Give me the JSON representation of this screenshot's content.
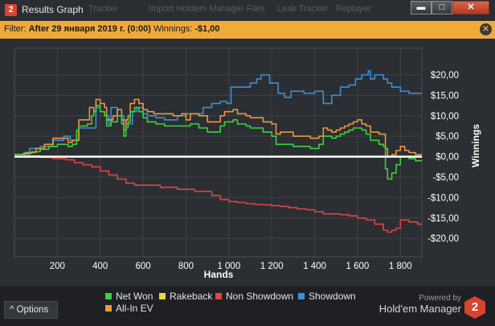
{
  "window": {
    "title": "Results Graph",
    "app_badge": "2",
    "ghost_tabs": [
      "Tracker",
      "Import Holdem Manager Files",
      "Leak Tracker",
      "Replayer"
    ],
    "min_label": "▬",
    "max_label": "□",
    "close_label": "✕"
  },
  "filter": {
    "prefix": "Filter: ",
    "date_text": "After 29 января 2019 г. (0:00)",
    "winnings_label": " Winnings: ",
    "winnings_value": "-$1,00",
    "close_label": "✕"
  },
  "chart_data": {
    "type": "line",
    "xlabel": "Hands",
    "ylabel": "Winnings",
    "x_ticks": [
      200,
      400,
      600,
      800,
      1000,
      1200,
      1400,
      1600,
      1800
    ],
    "x_tick_labels": [
      "200",
      "400",
      "600",
      "800",
      "1 000",
      "1 200",
      "1 400",
      "1 600",
      "1 800"
    ],
    "y_ticks": [
      20,
      15,
      10,
      5,
      0,
      -5,
      -10,
      -15,
      -20
    ],
    "y_tick_labels": [
      "$20,00",
      "$15,00",
      "$10,00",
      "$5,00",
      "$0,00",
      "-$5,00",
      "-$10,00",
      "-$15,00",
      "-$20,00"
    ],
    "xlim": [
      0,
      1900
    ],
    "ylim": [
      -24.5,
      26.5
    ],
    "grid": true,
    "zero_line": true,
    "series": [
      {
        "name": "Showdown",
        "color": "#3b8fd8",
        "x": [
          0,
          70,
          120,
          180,
          230,
          260,
          300,
          340,
          370,
          380,
          400,
          420,
          440,
          450,
          480,
          510,
          520,
          550,
          570,
          600,
          620,
          660,
          700,
          760,
          800,
          880,
          920,
          960,
          990,
          1010,
          1040,
          1100,
          1130,
          1150,
          1190,
          1230,
          1260,
          1290,
          1310,
          1350,
          1400,
          1430,
          1440,
          1480,
          1520,
          1560,
          1590,
          1620,
          1650,
          1660,
          1680,
          1720,
          1740,
          1760,
          1800,
          1840,
          1870,
          1900
        ],
        "y": [
          0.5,
          2,
          2.5,
          4,
          5,
          4,
          7,
          7,
          7,
          12,
          11,
          10,
          8,
          12,
          10,
          9,
          8,
          11,
          12,
          10.5,
          10,
          9.5,
          9,
          10,
          10.5,
          12,
          13,
          13.5,
          13,
          17,
          17,
          18,
          19,
          20,
          18,
          15.5,
          14.5,
          16,
          16,
          15.5,
          16,
          16,
          13,
          15,
          17,
          17.5,
          19,
          20,
          21,
          19,
          20,
          19,
          18,
          17,
          16,
          15.5,
          15.5,
          15.5
        ]
      },
      {
        "name": "All-In EV",
        "color": "#f0963c",
        "x": [
          0,
          50,
          100,
          140,
          180,
          250,
          270,
          300,
          350,
          370,
          380,
          400,
          420,
          430,
          460,
          480,
          500,
          510,
          520,
          530,
          540,
          560,
          580,
          600,
          620,
          650,
          700,
          740,
          780,
          800,
          820,
          860,
          900,
          960,
          980,
          1000,
          1020,
          1040,
          1080,
          1100,
          1120,
          1160,
          1200,
          1220,
          1240,
          1300,
          1340,
          1380,
          1400,
          1420,
          1440,
          1460,
          1480,
          1500,
          1520,
          1540,
          1560,
          1580,
          1600,
          1620,
          1640,
          1660,
          1700,
          1720,
          1730,
          1740,
          1760,
          1780,
          1800,
          1820,
          1840,
          1870,
          1900
        ],
        "y": [
          0.5,
          1,
          2,
          3,
          4.5,
          3.5,
          4,
          9,
          12,
          11,
          14,
          13,
          12,
          9,
          10,
          11.5,
          9,
          6.5,
          9,
          10,
          13,
          14,
          13,
          11.5,
          11,
          10.5,
          10.5,
          10,
          10.5,
          9,
          10.5,
          10,
          8.5,
          10,
          11,
          11,
          11.5,
          10.5,
          10,
          9.5,
          9.5,
          8.5,
          8,
          5.5,
          6,
          5,
          5,
          4.5,
          4.5,
          5,
          7,
          6.5,
          6,
          6.5,
          7,
          7.5,
          8,
          8.5,
          9,
          8,
          7.5,
          6,
          5.5,
          5.5,
          2,
          0,
          0.5,
          1.5,
          2.5,
          1.5,
          1,
          0.5,
          0.5
        ]
      },
      {
        "name": "Net Won",
        "color": "#3cd23c",
        "x": [
          0,
          40,
          80,
          120,
          160,
          200,
          250,
          270,
          290,
          300,
          340,
          360,
          370,
          380,
          400,
          420,
          430,
          450,
          480,
          500,
          510,
          520,
          530,
          540,
          560,
          580,
          600,
          620,
          660,
          700,
          760,
          800,
          820,
          860,
          900,
          960,
          980,
          1000,
          1020,
          1040,
          1080,
          1100,
          1120,
          1160,
          1200,
          1220,
          1240,
          1300,
          1340,
          1380,
          1400,
          1420,
          1440,
          1460,
          1480,
          1500,
          1520,
          1540,
          1560,
          1580,
          1600,
          1620,
          1640,
          1660,
          1700,
          1720,
          1730,
          1740,
          1760,
          1780,
          1800,
          1820,
          1840,
          1870,
          1900
        ],
        "y": [
          0.5,
          0.8,
          1.2,
          1.8,
          2.5,
          3,
          2.5,
          3,
          6.5,
          7.5,
          8,
          10,
          11,
          12.5,
          11,
          10,
          7.5,
          8.5,
          10,
          8,
          5,
          7,
          8.5,
          11,
          12,
          11,
          9.5,
          8.5,
          8,
          7.5,
          7.5,
          7.5,
          8,
          7,
          6,
          7.5,
          8.5,
          8.5,
          9,
          8,
          7.5,
          7,
          7,
          6,
          5,
          3,
          3,
          2.5,
          2.5,
          2,
          2,
          3,
          5,
          5,
          4.5,
          5,
          5.5,
          6,
          6.5,
          7,
          7,
          6.5,
          5.5,
          4,
          3,
          2.5,
          -3,
          -5.5,
          -4,
          -2,
          0,
          0,
          -0.5,
          -1,
          -1
        ]
      },
      {
        "name": "Non Showdown",
        "color": "#e04444",
        "x": [
          0,
          60,
          120,
          180,
          240,
          280,
          320,
          360,
          400,
          440,
          480,
          520,
          560,
          600,
          640,
          680,
          720,
          760,
          800,
          840,
          880,
          920,
          960,
          1000,
          1040,
          1080,
          1120,
          1160,
          1200,
          1240,
          1280,
          1320,
          1360,
          1400,
          1440,
          1480,
          1520,
          1560,
          1600,
          1640,
          1680,
          1720,
          1740,
          1760,
          1780,
          1800,
          1820,
          1840,
          1860,
          1880,
          1900
        ],
        "y": [
          0,
          0.2,
          -0.2,
          -0.5,
          -0.8,
          -1.5,
          -2,
          -2.5,
          -3.5,
          -4.5,
          -5.5,
          -6.5,
          -7,
          -7,
          -7,
          -7.5,
          -7.5,
          -8,
          -8,
          -8.5,
          -8.5,
          -9.5,
          -10.5,
          -11,
          -11.2,
          -11.5,
          -11.7,
          -11.8,
          -12,
          -12.2,
          -12.5,
          -12.8,
          -13,
          -13.5,
          -14,
          -14,
          -14.2,
          -14.5,
          -15,
          -15.5,
          -16.5,
          -18,
          -18.5,
          -18,
          -17.5,
          -15.5,
          -15.5,
          -16,
          -16,
          -16.5,
          -16.5
        ]
      }
    ],
    "legend": [
      {
        "name": "Net Won",
        "color": "#3cd23c"
      },
      {
        "name": "Rakeback",
        "color": "#e8d83c"
      },
      {
        "name": "Non Showdown",
        "color": "#e04444"
      },
      {
        "name": "Showdown",
        "color": "#3b8fd8"
      },
      {
        "name": "All-In EV",
        "color": "#f0963c"
      }
    ]
  },
  "footer": {
    "options_label": "Options",
    "options_icon": "^",
    "powered_by": "Powered by",
    "brand_name": "Hold'em Manager",
    "brand_badge": "2"
  }
}
